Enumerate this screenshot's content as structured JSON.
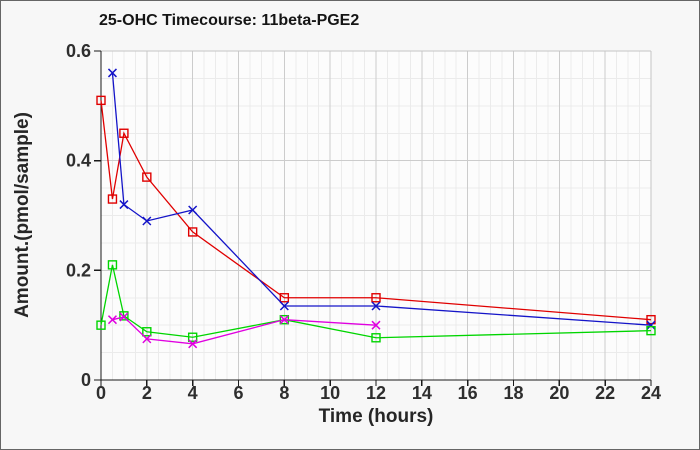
{
  "chart_data": {
    "type": "line",
    "title": "25-OHC Timecourse: 11beta-PGE2",
    "xlabel": "Time (hours)",
    "ylabel": "Amount.(pmol/sample)",
    "xlim": [
      0,
      24
    ],
    "ylim": [
      0,
      0.6
    ],
    "x_ticks": [
      0,
      2,
      4,
      6,
      8,
      10,
      12,
      14,
      16,
      18,
      20,
      22,
      24
    ],
    "x_tick_labels": [
      "0",
      "2",
      "4",
      "6",
      "8",
      "10",
      "12",
      "14",
      "16",
      "18",
      "20",
      "22",
      "24"
    ],
    "y_ticks": [
      0,
      0.2,
      0.4,
      0.6
    ],
    "y_tick_labels": [
      "0",
      "0.2",
      "0.4",
      "0.6"
    ],
    "x_minor_step": 0.5,
    "y_minor_step": 0.05,
    "grid": true,
    "legend_position": "none",
    "series": [
      {
        "name": "red-squares",
        "color": "#e00000",
        "marker": "square",
        "points": [
          [
            0,
            0.51
          ],
          [
            0.5,
            0.33
          ],
          [
            1,
            0.45
          ],
          [
            2,
            0.37
          ],
          [
            4,
            0.27
          ],
          [
            8,
            0.15
          ],
          [
            12,
            0.15
          ],
          [
            24,
            0.11
          ]
        ]
      },
      {
        "name": "blue-crosses",
        "color": "#1414c8",
        "marker": "x",
        "points": [
          [
            0.5,
            0.56
          ],
          [
            1,
            0.32
          ],
          [
            2,
            0.29
          ],
          [
            4,
            0.31
          ],
          [
            8,
            0.135
          ],
          [
            12,
            0.135
          ],
          [
            24,
            0.1
          ]
        ]
      },
      {
        "name": "green-squares",
        "color": "#00d500",
        "marker": "square",
        "points": [
          [
            0,
            0.1
          ],
          [
            0.5,
            0.21
          ],
          [
            1,
            0.117
          ],
          [
            2,
            0.088
          ],
          [
            4,
            0.078
          ],
          [
            8,
            0.11
          ],
          [
            12,
            0.077
          ],
          [
            24,
            0.09
          ]
        ]
      },
      {
        "name": "magenta-crosses",
        "color": "#e000e0",
        "marker": "x",
        "points": [
          [
            0.5,
            0.11
          ],
          [
            1,
            0.115
          ],
          [
            2,
            0.075
          ],
          [
            4,
            0.066
          ],
          [
            8,
            0.11
          ],
          [
            12,
            0.1
          ]
        ]
      }
    ],
    "colors": {
      "figure_background": "#f7f7f7",
      "plot_background": "#fcfcfc",
      "grid_minor": "#ebebeb",
      "grid_major": "#cccccc",
      "frame": "#c4c4c4",
      "axis": "#1a1a1a",
      "tick_text": "#2e2e2e",
      "border": "#666666"
    }
  }
}
